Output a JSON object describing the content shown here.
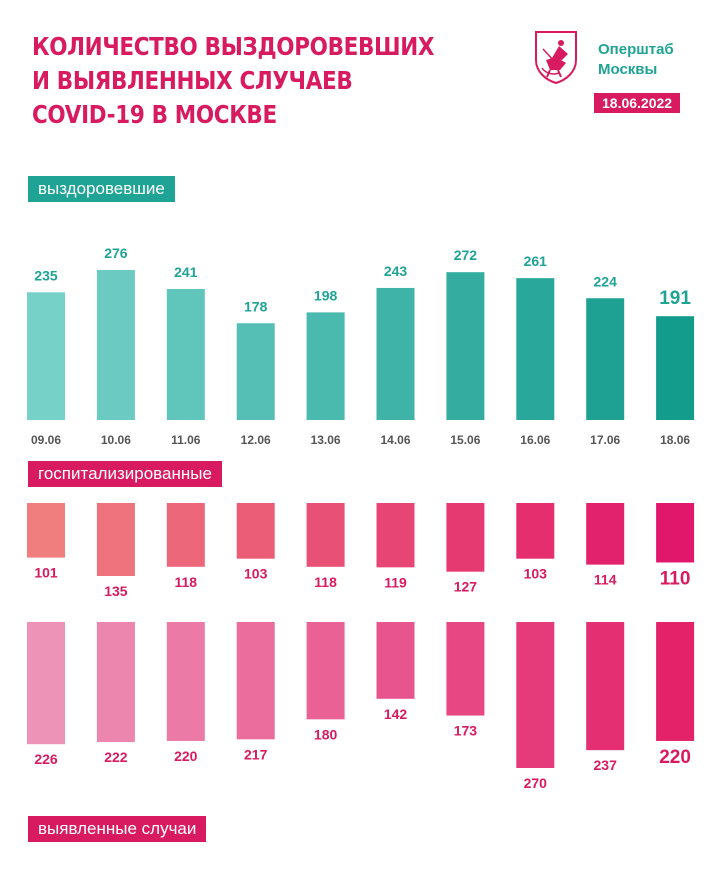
{
  "header": {
    "title_lines": [
      "Количество выздоровевших",
      "и выявленных случаев",
      "COVID-19 в Москве"
    ],
    "org_lines": [
      "Оперштаб",
      "Москвы"
    ],
    "date": "18.06.2022"
  },
  "sections": {
    "recovered_label": "выздоровевшие",
    "hospitalized_label": "госпитализированные",
    "detected_label": "выявленные случаи"
  },
  "colors": {
    "teal_start": "#76d1c9",
    "teal_end": "#139b8c",
    "pink_start": "#f07e7e",
    "pink_end": "#e0176a",
    "rose_start": "#ee93b8",
    "rose_end": "#e3226a",
    "brand": "#d81b60",
    "teal_text": "#1fa394"
  },
  "chart_data": [
    {
      "type": "bar",
      "name": "recovered",
      "title": "выздоровевшие",
      "categories": [
        "09.06",
        "10.06",
        "11.06",
        "12.06",
        "13.06",
        "14.06",
        "15.06",
        "16.06",
        "17.06",
        "18.06"
      ],
      "values": [
        235,
        276,
        241,
        178,
        198,
        243,
        272,
        261,
        224,
        191
      ],
      "ylim": [
        0,
        276
      ]
    },
    {
      "type": "bar",
      "name": "hospitalized",
      "title": "госпитализированные",
      "categories": [
        "09.06",
        "10.06",
        "11.06",
        "12.06",
        "13.06",
        "14.06",
        "15.06",
        "16.06",
        "17.06",
        "18.06"
      ],
      "values": [
        101,
        135,
        118,
        103,
        118,
        119,
        127,
        103,
        114,
        110
      ],
      "direction": "down",
      "ylim": [
        0,
        135
      ]
    },
    {
      "type": "bar",
      "name": "detected",
      "title": "выявленные случаи",
      "categories": [
        "09.06",
        "10.06",
        "11.06",
        "12.06",
        "13.06",
        "14.06",
        "15.06",
        "16.06",
        "17.06",
        "18.06"
      ],
      "values": [
        226,
        222,
        220,
        217,
        180,
        142,
        173,
        270,
        237,
        220
      ],
      "direction": "down",
      "ylim": [
        0,
        270
      ]
    }
  ]
}
